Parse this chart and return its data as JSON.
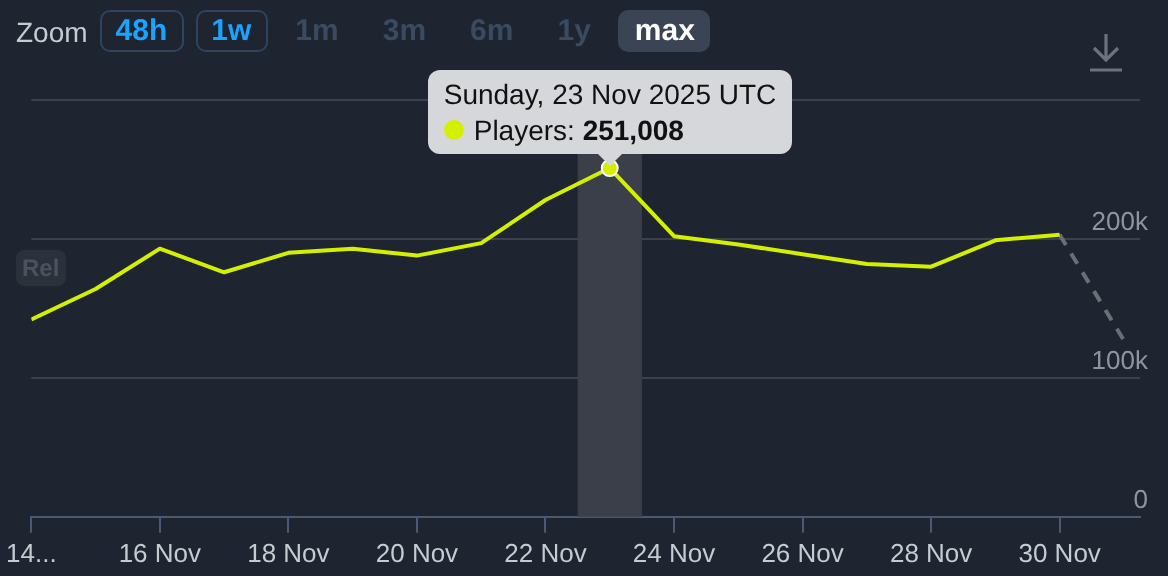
{
  "chart_data": {
    "type": "line",
    "annotations": [
      "Zoom",
      "48h",
      "1w",
      "1m",
      "3m",
      "6m",
      "1y",
      "max",
      "Rel",
      {
        "text": "Sunday, 23 Nov 2025 UTC",
        "x": "2025-11-23",
        "y": 251008
      }
    ],
    "series": [
      {
        "name": "Players:",
        "color": "#d4f000",
        "x": [
          "2025-11-14",
          "2025-11-15",
          "2025-11-16",
          "2025-11-17",
          "2025-11-18",
          "2025-11-19",
          "2025-11-20",
          "2025-11-21",
          "2025-11-22",
          "2025-11-23",
          "2025-11-24",
          "2025-11-25",
          "2025-11-26",
          "2025-11-27",
          "2025-11-28",
          "2025-11-29",
          "2025-11-30"
        ],
        "values": [
          142000,
          164000,
          193000,
          176000,
          190000,
          193000,
          188000,
          197000,
          228000,
          251008,
          202000,
          196000,
          189000,
          182000,
          180000,
          199000,
          203000
        ],
        "value_labels": [
          null,
          null,
          null,
          null,
          null,
          null,
          null,
          null,
          null,
          "251,008",
          null,
          null,
          null,
          null,
          null,
          null,
          null
        ]
      },
      {
        "color": "#6b6f75",
        "line_style": "dashed",
        "x": [
          "2025-11-30",
          "2025-12-01"
        ],
        "values": [
          203000,
          127000
        ]
      }
    ],
    "bands": [
      {
        "axis": "x",
        "from": "2025-11-22T12:00",
        "to": "2025-11-23T12:00",
        "color": "#3a3f49"
      }
    ],
    "xlim": [
      "2025-11-14",
      "2025-12-01T06:00"
    ],
    "xticks": [
      {
        "value": "2025-11-14",
        "label": "14..."
      },
      {
        "value": "2025-11-16",
        "label": "16 Nov"
      },
      {
        "value": "2025-11-18",
        "label": "18 Nov"
      },
      {
        "value": "2025-11-20",
        "label": "20 Nov"
      },
      {
        "value": "2025-11-22",
        "label": "22 Nov"
      },
      {
        "value": "2025-11-24",
        "label": "24 Nov"
      },
      {
        "value": "2025-11-26",
        "label": "26 Nov"
      },
      {
        "value": "2025-11-28",
        "label": "28 Nov"
      },
      {
        "value": "2025-11-30",
        "label": "30 Nov"
      }
    ],
    "ylim": [
      0,
      300000
    ],
    "yticks": [
      {
        "value": 0,
        "label": "0"
      },
      {
        "value": 100000,
        "label": "100k"
      },
      {
        "value": 200000,
        "label": "200k"
      },
      {
        "value": 300000,
        "label": null
      }
    ],
    "grid": "y",
    "legend": "top",
    "marker": "none"
  }
}
